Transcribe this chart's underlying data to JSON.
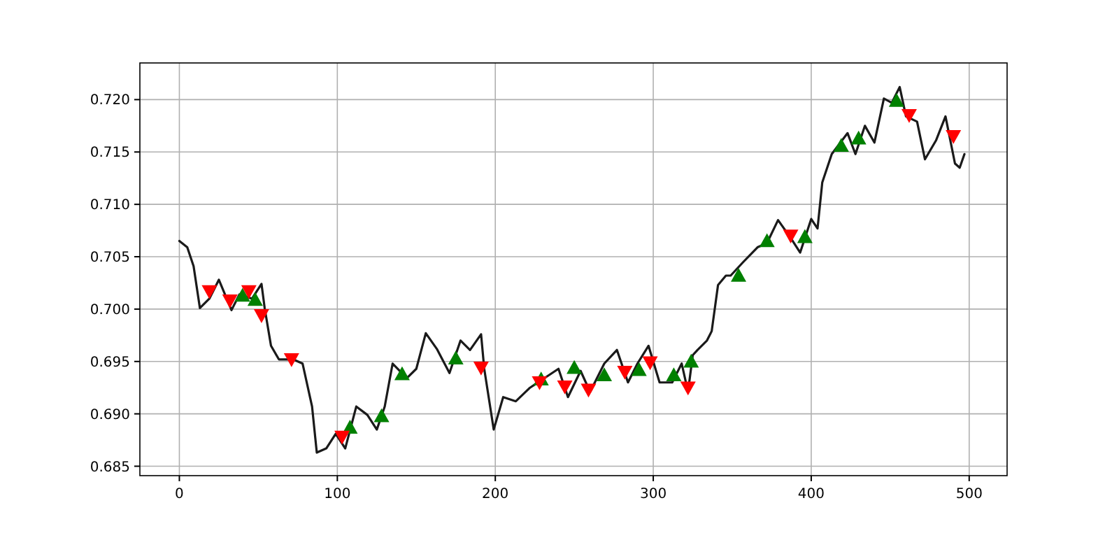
{
  "chart_data": {
    "type": "line",
    "xlim": [
      -25,
      524
    ],
    "ylim": [
      0.6841,
      0.7235
    ],
    "xticks": [
      0,
      100,
      200,
      300,
      400,
      500
    ],
    "yticks": [
      {
        "value": 0.685,
        "label": "0.685"
      },
      {
        "value": 0.69,
        "label": "0.690"
      },
      {
        "value": 0.695,
        "label": "0.695"
      },
      {
        "value": 0.7,
        "label": "0.700"
      },
      {
        "value": 0.705,
        "label": "0.705"
      },
      {
        "value": 0.71,
        "label": "0.710"
      },
      {
        "value": 0.715,
        "label": "0.715"
      },
      {
        "value": 0.72,
        "label": "0.720"
      }
    ],
    "grid": true,
    "series": [
      {
        "color": "#1a1a1a",
        "marker": "none",
        "line_style": "solid",
        "x": [
          0,
          5,
          9,
          13,
          19,
          25,
          33,
          38,
          46,
          52,
          54,
          58,
          63,
          72,
          78,
          84,
          87,
          93,
          99,
          105,
          112,
          119,
          125,
          130,
          135,
          144,
          150,
          156,
          163,
          171,
          178,
          184,
          191,
          193,
          199,
          205,
          213,
          222,
          231,
          240,
          246,
          254,
          260,
          269,
          277,
          284,
          290,
          297,
          304,
          312,
          318,
          322,
          325,
          328,
          334,
          337,
          341,
          346,
          349,
          357,
          366,
          372,
          379,
          387,
          393,
          400,
          404,
          407,
          413,
          423,
          428,
          434,
          440,
          446,
          451,
          456,
          460,
          467,
          472,
          479,
          485,
          491,
          494,
          497
        ],
        "values": [
          0.7065,
          0.7059,
          0.7041,
          0.7001,
          0.701,
          0.7028,
          0.6999,
          0.7014,
          0.701,
          0.7024,
          0.7001,
          0.6965,
          0.6952,
          0.6952,
          0.6948,
          0.6907,
          0.6863,
          0.6867,
          0.6881,
          0.6867,
          0.6907,
          0.6899,
          0.6885,
          0.6907,
          0.6948,
          0.6934,
          0.6943,
          0.6977,
          0.6962,
          0.6939,
          0.697,
          0.6961,
          0.6976,
          0.6943,
          0.6885,
          0.6916,
          0.6912,
          0.6925,
          0.6934,
          0.6943,
          0.6916,
          0.6941,
          0.6921,
          0.6948,
          0.6961,
          0.693,
          0.6948,
          0.6965,
          0.693,
          0.693,
          0.6948,
          0.6921,
          0.6956,
          0.6961,
          0.697,
          0.6979,
          0.7023,
          0.7032,
          0.7032,
          0.7045,
          0.7059,
          0.7063,
          0.7085,
          0.7068,
          0.7054,
          0.7086,
          0.7077,
          0.7121,
          0.7148,
          0.7168,
          0.7148,
          0.7175,
          0.7159,
          0.7201,
          0.7197,
          0.7212,
          0.7184,
          0.7179,
          0.7143,
          0.7161,
          0.7184,
          0.7139,
          0.7135,
          0.7148
        ]
      },
      {
        "type": "scatter",
        "color": "#008000",
        "marker": "triangle",
        "x": [
          40,
          48,
          108,
          128,
          141,
          175,
          229,
          250,
          269,
          291,
          313,
          324,
          354,
          372,
          396,
          419,
          430,
          454
        ],
        "values": [
          0.7013,
          0.7009,
          0.6887,
          0.6898,
          0.6938,
          0.6953,
          0.6933,
          0.6944,
          0.6937,
          0.6942,
          0.6937,
          0.695,
          0.7032,
          0.7065,
          0.7069,
          0.7156,
          0.7163,
          0.7199
        ]
      },
      {
        "type": "scatter",
        "color": "#ff0000",
        "marker": "triangle-down",
        "x": [
          19,
          32,
          44,
          52,
          71,
          103,
          191,
          228,
          244,
          259,
          282,
          298,
          322,
          387,
          462,
          490
        ],
        "values": [
          0.7017,
          0.7008,
          0.7017,
          0.6994,
          0.6952,
          0.6878,
          0.6944,
          0.693,
          0.6926,
          0.6923,
          0.694,
          0.6949,
          0.6925,
          0.707,
          0.7185,
          0.7165
        ]
      }
    ]
  }
}
